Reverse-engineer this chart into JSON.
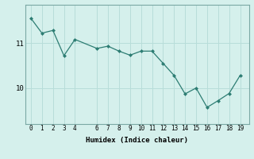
{
  "x": [
    0,
    1,
    2,
    3,
    4,
    6,
    7,
    8,
    9,
    10,
    11,
    12,
    13,
    14,
    15,
    16,
    17,
    18,
    19
  ],
  "y": [
    11.55,
    11.22,
    11.28,
    10.72,
    11.08,
    10.88,
    10.93,
    10.82,
    10.73,
    10.82,
    10.82,
    10.55,
    10.28,
    9.87,
    10.0,
    9.57,
    9.72,
    9.88,
    10.28
  ],
  "line_color": "#2d7d73",
  "marker": "D",
  "marker_size": 2.0,
  "bg_color": "#d5f0ec",
  "grid_color": "#b8ddd9",
  "xlabel": "Humidex (Indice chaleur)",
  "yticks": [
    10,
    11
  ],
  "xticks": [
    0,
    1,
    2,
    3,
    4,
    6,
    7,
    8,
    9,
    10,
    11,
    12,
    13,
    14,
    15,
    16,
    17,
    18,
    19
  ],
  "xlim": [
    -0.5,
    19.8
  ],
  "ylim": [
    9.2,
    11.85
  ]
}
